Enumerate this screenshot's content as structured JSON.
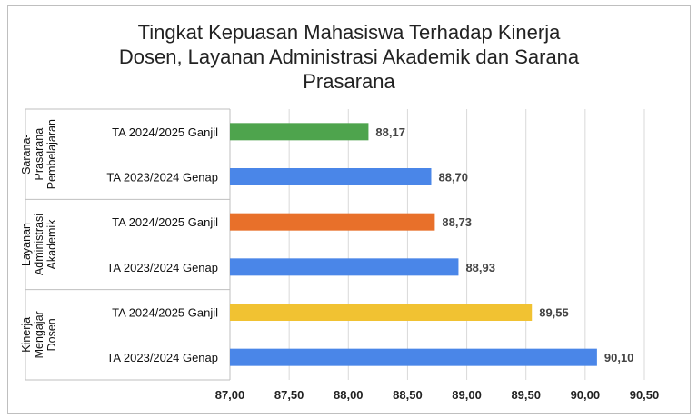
{
  "chart_data": {
    "type": "bar",
    "orientation": "horizontal",
    "title": "Tingkat Kepuasan Mahasiswa Terhadap Kinerja\nDosen, Layanan Administrasi Akademik dan Sarana\nPrasarana",
    "xlim": [
      87.0,
      90.5
    ],
    "xticks": [
      "87,00",
      "87,50",
      "88,00",
      "88,50",
      "89,00",
      "89,50",
      "90,00",
      "90,50"
    ],
    "xtick_values": [
      87.0,
      87.5,
      88.0,
      88.5,
      89.0,
      89.5,
      90.0,
      90.5
    ],
    "grid": true,
    "groups": [
      {
        "name": "Sarana-\nPrasarana\nPembelajaran",
        "items": [
          {
            "category": "TA 2024/2025 Ganjil",
            "value": 88.17,
            "label": "88,17",
            "color": "#4ea44d"
          },
          {
            "category": "TA 2023/2024 Genap",
            "value": 88.7,
            "label": "88,70",
            "color": "#4a86e8"
          }
        ]
      },
      {
        "name": "Layanan\nAdministrasi\nAkademik",
        "items": [
          {
            "category": "TA 2024/2025 Ganjil",
            "value": 88.73,
            "label": "88,73",
            "color": "#e8702a"
          },
          {
            "category": "TA 2023/2024 Genap",
            "value": 88.93,
            "label": "88,93",
            "color": "#4a86e8"
          }
        ]
      },
      {
        "name": "Kinerja\nMengajar\nDosen",
        "items": [
          {
            "category": "TA 2024/2025 Ganjil",
            "value": 89.55,
            "label": "89,55",
            "color": "#f1c232"
          },
          {
            "category": "TA 2023/2024 Genap",
            "value": 90.1,
            "label": "90,10",
            "color": "#4a86e8"
          }
        ]
      }
    ]
  }
}
